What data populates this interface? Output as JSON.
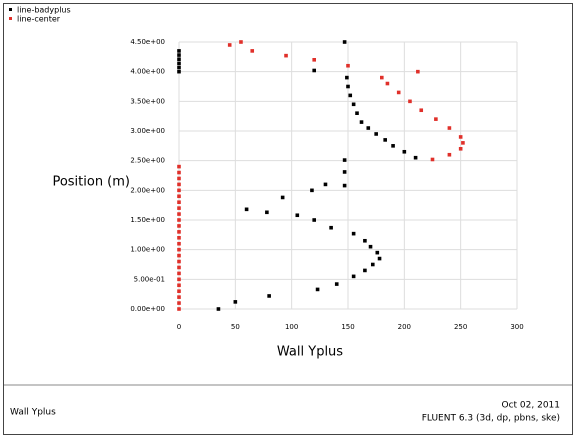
{
  "chart_data": {
    "type": "scatter",
    "xlabel": "Wall Yplus",
    "ylabel": "Position (m)",
    "footer_left": "Wall Yplus",
    "footer_date": "Oct 02, 2011",
    "footer_solver": "FLUENT 6.3 (3d, dp, pbns, ske)",
    "xlim": [
      0,
      300
    ],
    "xticks": [
      0,
      50,
      100,
      150,
      200,
      250,
      300
    ],
    "ylim": [
      0,
      4.5
    ],
    "yticks": [
      {
        "value": 0,
        "label": "0.00e+00"
      },
      {
        "value": 0.5,
        "label": "5.00e-01"
      },
      {
        "value": 1,
        "label": "1.00e+00"
      },
      {
        "value": 1.5,
        "label": "1.50e+00"
      },
      {
        "value": 2,
        "label": "2.00e+00"
      },
      {
        "value": 2.5,
        "label": "2.50e+00"
      },
      {
        "value": 3,
        "label": "3.00e+00"
      },
      {
        "value": 3.5,
        "label": "3.50e+00"
      },
      {
        "value": 4,
        "label": "4.00e+00"
      },
      {
        "value": 4.5,
        "label": "4.50e+00"
      }
    ],
    "grid": true,
    "series": [
      {
        "name": "line-badyplus",
        "color": "#000000",
        "x": [
          35,
          50,
          80,
          123,
          140,
          155,
          165,
          172,
          178,
          176,
          170,
          165,
          155,
          135,
          120,
          105,
          78,
          60,
          92,
          118,
          130,
          147,
          147,
          147,
          210,
          200,
          190,
          183,
          175,
          168,
          162,
          158,
          155,
          152,
          150,
          149,
          0,
          0,
          0,
          0,
          0,
          0,
          120,
          147
        ],
        "values": [
          0,
          0.12,
          0.22,
          0.33,
          0.42,
          0.55,
          0.65,
          0.75,
          0.85,
          0.95,
          1.05,
          1.15,
          1.27,
          1.37,
          1.5,
          1.58,
          1.63,
          1.68,
          1.88,
          2.0,
          2.1,
          2.08,
          2.31,
          2.51,
          2.55,
          2.65,
          2.75,
          2.85,
          2.95,
          3.05,
          3.15,
          3.3,
          3.45,
          3.6,
          3.75,
          3.9,
          4.0,
          4.07,
          4.14,
          4.21,
          4.28,
          4.35,
          4.02,
          4.5
        ]
      },
      {
        "name": "line-center",
        "color": "#e0302a",
        "x": [
          0,
          0,
          0,
          0,
          0,
          0,
          0,
          0,
          0,
          0,
          0,
          0,
          0,
          0,
          0,
          0,
          0,
          0,
          0,
          0,
          0,
          0,
          0,
          0,
          0,
          225,
          240,
          250,
          252,
          250,
          240,
          228,
          215,
          205,
          195,
          185,
          180,
          212,
          150,
          120,
          95,
          65,
          45,
          55
        ],
        "values": [
          0,
          0.1,
          0.2,
          0.3,
          0.4,
          0.5,
          0.6,
          0.7,
          0.8,
          0.9,
          1.0,
          1.1,
          1.2,
          1.3,
          1.4,
          1.5,
          1.6,
          1.7,
          1.8,
          1.9,
          2.0,
          2.1,
          2.2,
          2.3,
          2.4,
          2.52,
          2.6,
          2.7,
          2.8,
          2.9,
          3.05,
          3.2,
          3.35,
          3.5,
          3.65,
          3.8,
          3.9,
          4.0,
          4.1,
          4.2,
          4.27,
          4.35,
          4.45,
          4.5
        ]
      }
    ]
  }
}
